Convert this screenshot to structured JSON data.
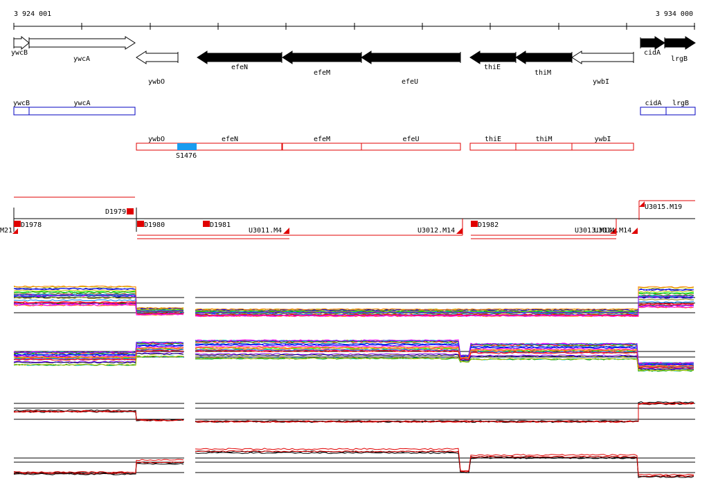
{
  "ruler": {
    "start_label": "3 924 001",
    "end_label": "3 934 000"
  },
  "colors": {
    "black": "#000000",
    "red": "#e00000",
    "blue": "#0000c0",
    "highlight": "#1a9cf0",
    "white": "#ffffff"
  },
  "genes": [
    {
      "id": "ywcB",
      "label": "ywcB",
      "strand": "+",
      "style": "open"
    },
    {
      "id": "ywcA",
      "label": "ywcA",
      "strand": "+",
      "style": "open"
    },
    {
      "id": "ywbO",
      "label": "ywbO",
      "strand": "-",
      "style": "open"
    },
    {
      "id": "efeN",
      "label": "efeN",
      "strand": "-",
      "style": "filled"
    },
    {
      "id": "efeM",
      "label": "efeM",
      "strand": "-",
      "style": "filled"
    },
    {
      "id": "efeU",
      "label": "efeU",
      "strand": "-",
      "style": "filled"
    },
    {
      "id": "thiE",
      "label": "thiE",
      "strand": "-",
      "style": "filled"
    },
    {
      "id": "thiM",
      "label": "thiM",
      "strand": "-",
      "style": "filled"
    },
    {
      "id": "ywbI",
      "label": "ywbI",
      "strand": "-",
      "style": "open"
    },
    {
      "id": "cidA",
      "label": "cidA",
      "strand": "+",
      "style": "filled"
    },
    {
      "id": "lrgB",
      "label": "lrgB",
      "strand": "+",
      "style": "filled"
    }
  ],
  "operon_track_plus": [
    {
      "label": "ywcB"
    },
    {
      "label": "ywcA"
    },
    {
      "label": "cidA"
    },
    {
      "label": "lrgB"
    }
  ],
  "operon_track_minus": [
    {
      "label": "ywbO"
    },
    {
      "label": "efeN"
    },
    {
      "label": "efeM"
    },
    {
      "label": "efeU"
    },
    {
      "label": "thiE"
    },
    {
      "label": "thiM"
    },
    {
      "label": "ywbI"
    }
  ],
  "highlight_region": {
    "label": "S1476"
  },
  "features": [
    {
      "label": "D1979"
    },
    {
      "label": "D1978"
    },
    {
      "label": "M21"
    },
    {
      "label": "D1980"
    },
    {
      "label": "D1981"
    },
    {
      "label": "U3011.M4"
    },
    {
      "label": "U3012.M14"
    },
    {
      "label": "D1982"
    },
    {
      "label": "U3013.M14"
    },
    {
      "label": "U3014.M14"
    },
    {
      "label": "U3015.M19"
    }
  ],
  "expression_tracks": [
    {
      "name": "track-1",
      "style": "multicolor"
    },
    {
      "name": "track-2",
      "style": "multicolor"
    },
    {
      "name": "track-3",
      "style": "black-red"
    },
    {
      "name": "track-4",
      "style": "black-red"
    }
  ]
}
